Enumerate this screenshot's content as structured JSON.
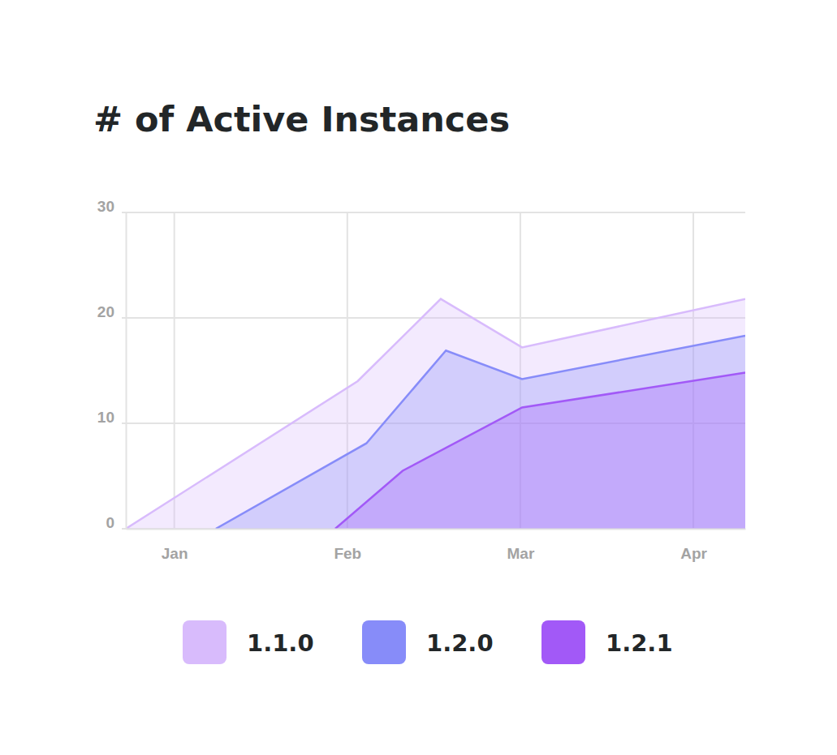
{
  "chart_data": {
    "type": "area",
    "title": "# of Active Instances",
    "xlim": [
      0.72,
      4.3
    ],
    "xticks": [
      {
        "value": 1,
        "label": "Jan"
      },
      {
        "value": 2,
        "label": "Feb"
      },
      {
        "value": 3,
        "label": "Mar"
      },
      {
        "value": 4,
        "label": "Apr"
      }
    ],
    "ylim": [
      0,
      30
    ],
    "yticks": [
      0,
      10,
      20,
      30
    ],
    "grid": true,
    "legend": "bottom",
    "series": [
      {
        "name": "1.1.0",
        "color": "#d8bbfc",
        "x": [
          0.72,
          2.06,
          2.54,
          3.01,
          4.3
        ],
        "values": [
          0,
          14,
          21.8,
          17.2,
          21.8
        ]
      },
      {
        "name": "1.2.0",
        "color": "#878cf9",
        "x": [
          1.24,
          2.11,
          2.57,
          3.01,
          4.3
        ],
        "values": [
          0,
          8.1,
          16.9,
          14.2,
          18.3
        ]
      },
      {
        "name": "1.2.1",
        "color": "#a259f7",
        "x": [
          1.93,
          2.32,
          3.01,
          4.3
        ],
        "values": [
          0,
          5.5,
          11.5,
          14.8
        ]
      }
    ]
  }
}
